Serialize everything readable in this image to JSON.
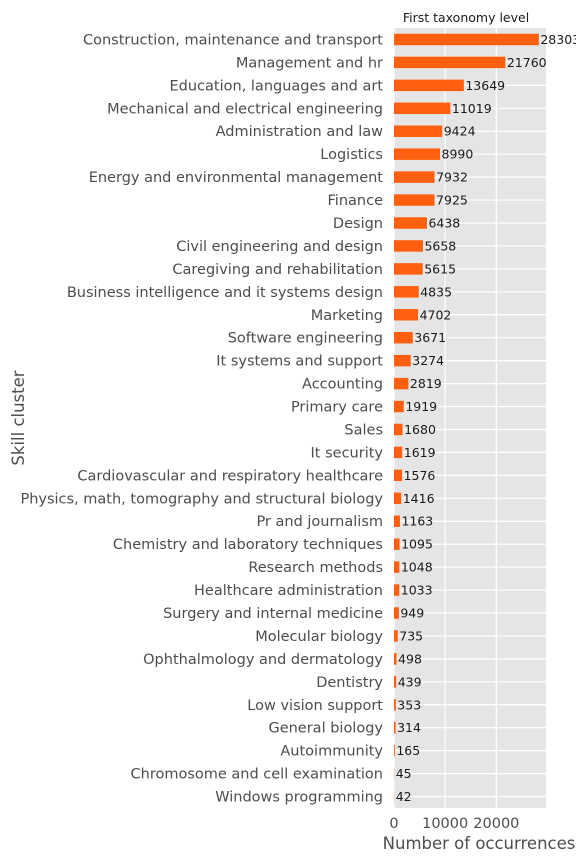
{
  "chart_data": {
    "type": "bar",
    "orientation": "horizontal",
    "title": "First taxonomy level",
    "xlabel": "Number of occurrences",
    "ylabel": "Skill cluster",
    "xticks": [
      0,
      10000,
      20000
    ],
    "xlim": [
      0,
      29700
    ],
    "grid": true,
    "bar_color": "#ff5f0f",
    "background_color": "#e5e5e5",
    "categories": [
      "Construction, maintenance and transport",
      "Management and hr",
      "Education, languages and art",
      "Mechanical and electrical engineering",
      "Administration and law",
      "Logistics",
      "Energy and environmental management",
      "Finance",
      "Design",
      "Civil engineering and design",
      "Caregiving and rehabilitation",
      "Business intelligence and it systems design",
      "Marketing",
      "Software engineering",
      "It systems and support",
      "Accounting",
      "Primary care",
      "Sales",
      "It security",
      "Cardiovascular and respiratory healthcare",
      "Physics, math, tomography and structural biology",
      "Pr and journalism",
      "Chemistry and laboratory techniques",
      "Research methods",
      "Healthcare administration",
      "Surgery and internal medicine",
      "Molecular biology",
      "Ophthalmology and dermatology",
      "Dentistry",
      "Low vision support",
      "General biology",
      "Autoimmunity",
      "Chromosome and cell examination",
      "Windows programming"
    ],
    "values": [
      28303,
      21760,
      13649,
      11019,
      9424,
      8990,
      7932,
      7925,
      6438,
      5658,
      5615,
      4835,
      4702,
      3671,
      3274,
      2819,
      1919,
      1680,
      1619,
      1576,
      1416,
      1163,
      1095,
      1048,
      1033,
      949,
      735,
      498,
      439,
      353,
      314,
      165,
      45,
      42
    ]
  }
}
